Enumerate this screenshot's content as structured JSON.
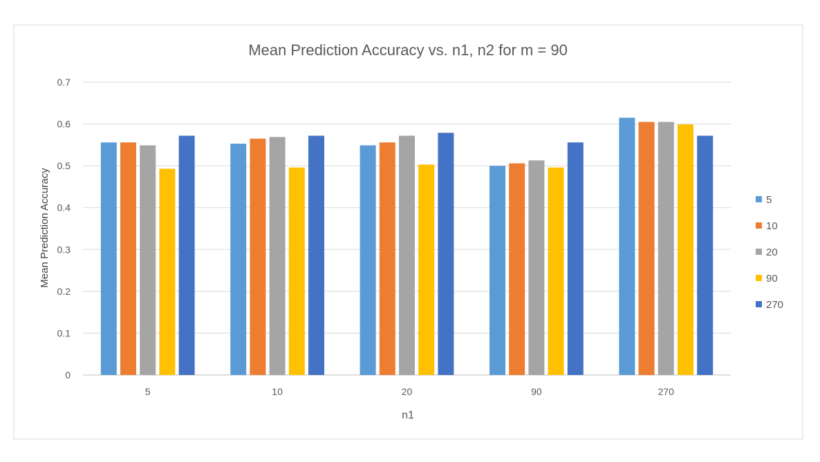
{
  "chart_data": {
    "type": "bar",
    "title": "Mean Prediction Accuracy vs.  n1, n2 for m = 90",
    "xlabel": "n1",
    "ylabel": "Mean Prediction  Accuracy",
    "categories": [
      "5",
      "10",
      "20",
      "90",
      "270"
    ],
    "ylim": [
      0,
      0.7
    ],
    "yticks": [
      "0",
      "0.1",
      "0.2",
      "0.3",
      "0.4",
      "0.5",
      "0.6",
      "0.7"
    ],
    "grid": true,
    "legend_position": "right",
    "series": [
      {
        "name": "5",
        "color": "#5B9BD5",
        "values": [
          0.556,
          0.553,
          0.549,
          0.5,
          0.615
        ]
      },
      {
        "name": "10",
        "color": "#ED7D31",
        "values": [
          0.556,
          0.565,
          0.556,
          0.506,
          0.605
        ]
      },
      {
        "name": "20",
        "color": "#A5A5A5",
        "values": [
          0.549,
          0.569,
          0.572,
          0.513,
          0.605
        ]
      },
      {
        "name": "90",
        "color": "#FFC000",
        "values": [
          0.493,
          0.496,
          0.503,
          0.496,
          0.599
        ]
      },
      {
        "name": "270",
        "color": "#4472C4",
        "values": [
          0.572,
          0.572,
          0.579,
          0.556,
          0.572
        ]
      }
    ]
  }
}
